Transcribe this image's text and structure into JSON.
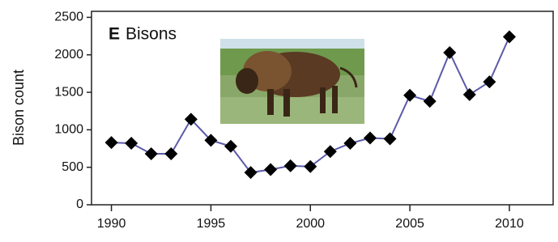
{
  "chart_data": {
    "type": "line",
    "panel_label": "E",
    "title": "Bisons",
    "y_label": "Bison count",
    "x": [
      1990,
      1991,
      1992,
      1993,
      1994,
      1995,
      1996,
      1997,
      1998,
      1999,
      2000,
      2001,
      2002,
      2003,
      2004,
      2005,
      2006,
      2007,
      2008,
      2009,
      2010
    ],
    "series": [
      {
        "name": "Bisons",
        "color": "#5b5aa8",
        "values": [
          830,
          820,
          680,
          680,
          1140,
          860,
          780,
          430,
          470,
          520,
          510,
          710,
          820,
          890,
          880,
          1460,
          1380,
          2030,
          1470,
          1640,
          2240
        ]
      }
    ],
    "xlim": [
      1989,
      2012.2
    ],
    "xticks": [
      1990,
      1995,
      2000,
      2005,
      2010
    ],
    "ylim": [
      0,
      2580
    ],
    "yticks": [
      0,
      500,
      1000,
      1500,
      2000,
      2500
    ]
  }
}
